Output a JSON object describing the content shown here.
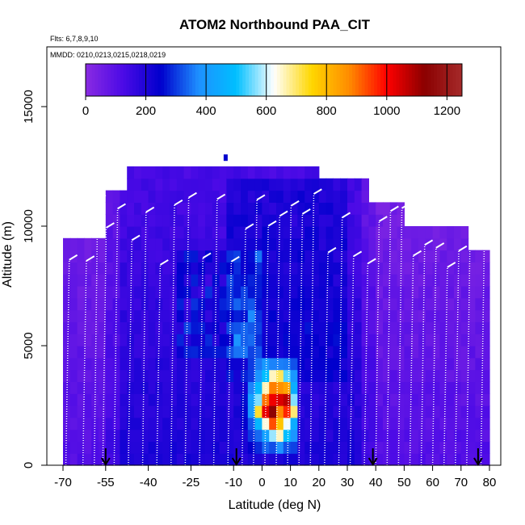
{
  "chart_data": {
    "type": "heatmap",
    "title": "ATOM2 Northbound PAA_CIT",
    "note_flights": "Flts: 6,7,8,9,10",
    "note_dates": "MMDD: 0210,0213,0215,0218,0219",
    "xlabel": "Latitude (deg N)",
    "ylabel": "Altitude (m)",
    "xlim": [
      -70,
      80
    ],
    "ylim": [
      0,
      17500
    ],
    "x_ticks": [
      -70,
      -55,
      -40,
      -25,
      -10,
      0,
      10,
      20,
      30,
      40,
      50,
      60,
      70,
      80
    ],
    "x_tick_labels": [
      "-70",
      "-55",
      "-40",
      "-25",
      "-10",
      "0",
      "10",
      "20",
      "30",
      "40",
      "50",
      "60",
      "70",
      "80"
    ],
    "y_ticks": [
      0,
      5000,
      10000,
      15000
    ],
    "y_tick_labels": [
      "0",
      "5000",
      "10000",
      "15000"
    ],
    "colorbar": {
      "range": [
        0,
        1250
      ],
      "ticks": [
        0,
        200,
        400,
        600,
        800,
        1000,
        1200
      ],
      "tick_labels": [
        "0",
        "200",
        "400",
        "600",
        "800",
        "1000",
        "1200"
      ],
      "colors": [
        "#8a2be2",
        "#4b0ae6",
        "#0000cd",
        "#1e90ff",
        "#00bfff",
        "#ffffff",
        "#ffd700",
        "#ff8c00",
        "#ff0000",
        "#8b0000",
        "#a52a2a"
      ]
    },
    "flight_markers_lat": [
      -55,
      -9,
      39,
      76
    ],
    "latitude_bins_deg": 2.5,
    "altitude_bins_m": 500,
    "enhanced_region": {
      "lat_range": [
        -12,
        12
      ],
      "alt_range": [
        1000,
        4000
      ],
      "peak_value": 1150,
      "peak_lat": 5,
      "peak_alt": 2500
    }
  }
}
